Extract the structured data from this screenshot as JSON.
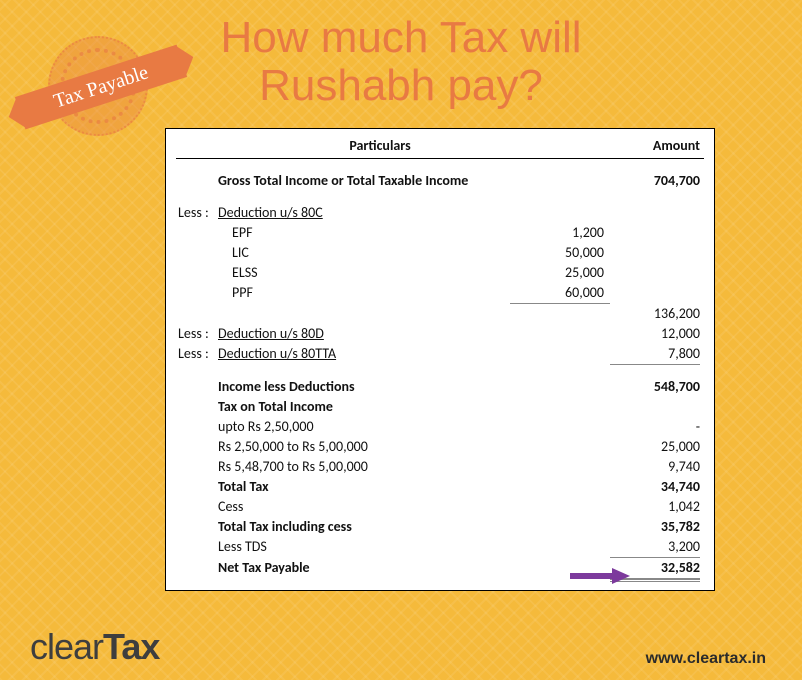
{
  "title_line1": "How much Tax will",
  "title_line2": "Rushabh pay?",
  "badge_text": "Tax Payable",
  "header": {
    "particulars": "Particulars",
    "amount": "Amount"
  },
  "gross": {
    "label": "Gross Total Income or Total Taxable Income",
    "value": "704,700"
  },
  "less_label": "Less :",
  "d80c": {
    "title": "Deduction u/s 80C",
    "items": [
      {
        "label": "EPF",
        "value": "1,200"
      },
      {
        "label": "LIC",
        "value": "50,000"
      },
      {
        "label": "ELSS",
        "value": "25,000"
      },
      {
        "label": "PPF",
        "value": "60,000"
      }
    ],
    "total": "136,200"
  },
  "d80d": {
    "title": "Deduction u/s 80D",
    "value": "12,000"
  },
  "d80tta": {
    "title": "Deduction u/s 80TTA",
    "value": "7,800"
  },
  "income_less": {
    "label": "Income less Deductions",
    "value": "548,700"
  },
  "tax_on_label": "Tax on Total Income",
  "slabs": [
    {
      "label": "upto Rs 2,50,000",
      "value": "-"
    },
    {
      "label": "Rs 2,50,000 to Rs 5,00,000",
      "value": "25,000"
    },
    {
      "label": "Rs 5,48,700 to Rs 5,00,000",
      "value": "9,740"
    }
  ],
  "total_tax": {
    "label": "Total Tax",
    "value": "34,740"
  },
  "cess": {
    "label": "Cess",
    "value": "1,042"
  },
  "total_cess": {
    "label": "Total Tax including cess",
    "value": "35,782"
  },
  "less_tds": {
    "label": "Less TDS",
    "value": "3,200"
  },
  "net": {
    "label": "Net Tax Payable",
    "value": "32,582"
  },
  "logo": {
    "part1": "clear",
    "part2": "Tax"
  },
  "url": "www.cleartax.in",
  "colors": {
    "bg": "#f5ba3b",
    "accent": "#e87a43",
    "arrow": "#7c3a9c",
    "text": "#111111"
  }
}
